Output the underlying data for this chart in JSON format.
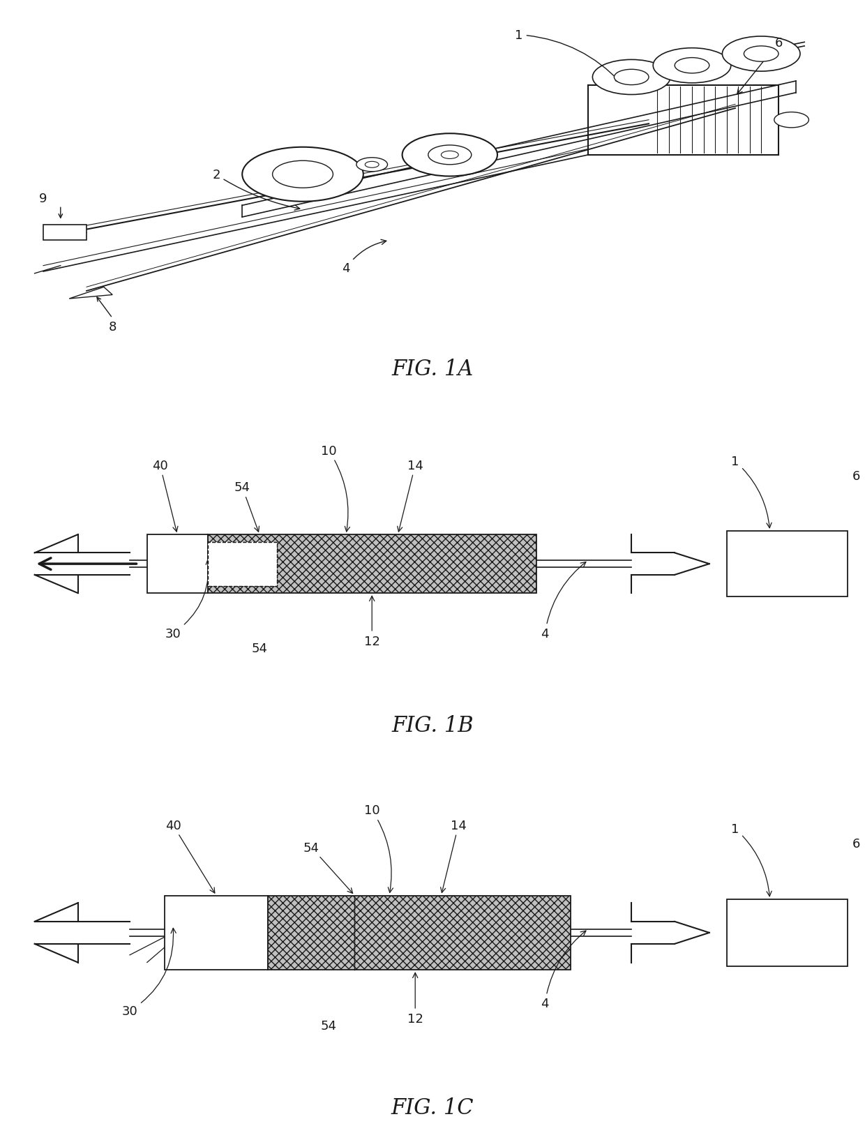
{
  "bg_color": "#ffffff",
  "line_color": "#1a1a1a",
  "hatch_color": "#888888",
  "fill_stent": "#c8c8c8",
  "fig_labels": [
    "FIG. 1A",
    "FIG. 1B",
    "FIG. 1C"
  ],
  "label_fontsize": 22,
  "annot_fontsize": 13
}
